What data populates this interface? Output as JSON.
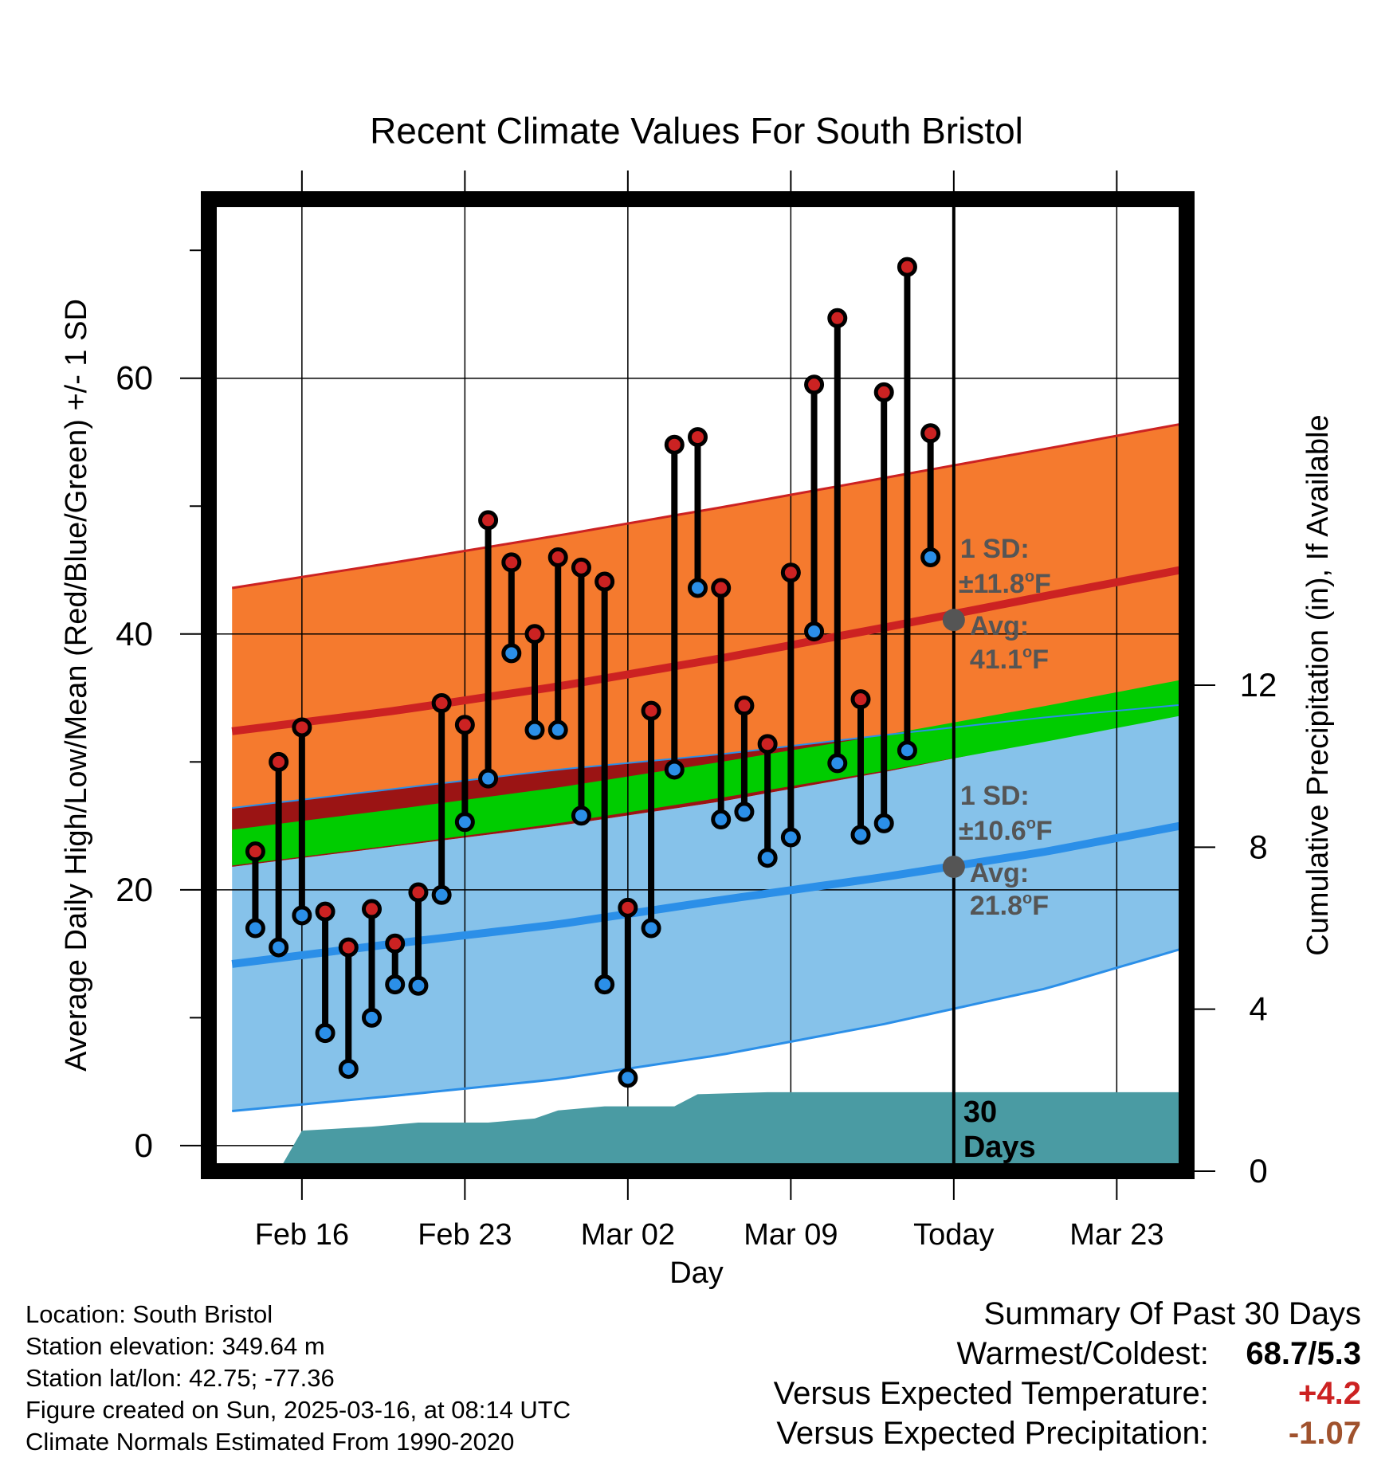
{
  "chart_data": {
    "type": "line",
    "title": "Recent Climate Values For South Bristol",
    "xlabel": "Day",
    "ylabel": "Average Daily High/Low/Mean (Red/Blue/Green) +/- 1 SD",
    "y2label": "Cumulative Precipitation (in), If Available",
    "xlim": [
      "2025-02-12",
      "2025-03-26"
    ],
    "ylim": [
      -2,
      74
    ],
    "y2lim": [
      0,
      24
    ],
    "x_ticks": [
      {
        "date": "2025-02-16",
        "label": "Feb 16"
      },
      {
        "date": "2025-02-23",
        "label": "Feb 23"
      },
      {
        "date": "2025-03-02",
        "label": "Mar 02"
      },
      {
        "date": "2025-03-09",
        "label": "Mar 09"
      },
      {
        "date": "2025-03-16",
        "label": "Today"
      },
      {
        "date": "2025-03-23",
        "label": "Mar 23"
      }
    ],
    "y_ticks": [
      0,
      20,
      40,
      60
    ],
    "y2_ticks": [
      0,
      4,
      8,
      12
    ],
    "grid": true,
    "today": "2025-03-16",
    "daily_obs": [
      {
        "date": "2025-02-14",
        "high": 23.0,
        "low": 17.0
      },
      {
        "date": "2025-02-15",
        "high": 30.0,
        "low": 15.5
      },
      {
        "date": "2025-02-16",
        "high": 32.7,
        "low": 18.0
      },
      {
        "date": "2025-02-17",
        "high": 18.3,
        "low": 8.8
      },
      {
        "date": "2025-02-18",
        "high": 15.5,
        "low": 6.0
      },
      {
        "date": "2025-02-19",
        "high": 18.5,
        "low": 10.0
      },
      {
        "date": "2025-02-20",
        "high": 15.8,
        "low": 12.6
      },
      {
        "date": "2025-02-21",
        "high": 19.8,
        "low": 12.5
      },
      {
        "date": "2025-02-22",
        "high": 34.6,
        "low": 19.6
      },
      {
        "date": "2025-02-23",
        "high": 32.9,
        "low": 25.3
      },
      {
        "date": "2025-02-24",
        "high": 48.9,
        "low": 28.7
      },
      {
        "date": "2025-02-25",
        "high": 45.6,
        "low": 38.5
      },
      {
        "date": "2025-02-26",
        "high": 40.0,
        "low": 32.5
      },
      {
        "date": "2025-02-27",
        "high": 46.0,
        "low": 32.5
      },
      {
        "date": "2025-02-28",
        "high": 45.2,
        "low": 25.8
      },
      {
        "date": "2025-03-01",
        "high": 44.1,
        "low": 12.6
      },
      {
        "date": "2025-03-02",
        "high": 18.6,
        "low": 5.3
      },
      {
        "date": "2025-03-03",
        "high": 34.0,
        "low": 17.0
      },
      {
        "date": "2025-03-04",
        "high": 54.8,
        "low": 29.4
      },
      {
        "date": "2025-03-05",
        "high": 55.4,
        "low": 43.6
      },
      {
        "date": "2025-03-06",
        "high": 43.6,
        "low": 25.5
      },
      {
        "date": "2025-03-07",
        "high": 34.4,
        "low": 26.1
      },
      {
        "date": "2025-03-08",
        "high": 31.4,
        "low": 22.5
      },
      {
        "date": "2025-03-09",
        "high": 44.8,
        "low": 24.1
      },
      {
        "date": "2025-03-10",
        "high": 59.5,
        "low": 40.2
      },
      {
        "date": "2025-03-11",
        "high": 64.7,
        "low": 29.9
      },
      {
        "date": "2025-03-12",
        "high": 34.9,
        "low": 24.3
      },
      {
        "date": "2025-03-13",
        "high": 58.9,
        "low": 25.2
      },
      {
        "date": "2025-03-14",
        "high": 68.7,
        "low": 30.9
      },
      {
        "date": "2025-03-15",
        "high": 55.7,
        "low": 46.0
      }
    ],
    "normals": {
      "dates": [
        "2025-02-13",
        "2025-02-20",
        "2025-02-27",
        "2025-03-06",
        "2025-03-13",
        "2025-03-20",
        "2025-03-26"
      ],
      "high_avg": [
        32.4,
        34.0,
        35.9,
        38.1,
        40.5,
        43.0,
        45.1
      ],
      "high_sd_upper": [
        43.6,
        45.6,
        47.7,
        49.9,
        52.2,
        54.5,
        56.5
      ],
      "low_avg": [
        14.2,
        15.8,
        17.3,
        19.2,
        21.0,
        23.0,
        25.1
      ],
      "low_sd_upper": [
        21.8,
        23.4,
        25.0,
        26.9,
        29.2,
        31.7,
        34.2
      ],
      "low_sd_lower": [
        2.7,
        3.9,
        5.2,
        7.1,
        9.5,
        12.3,
        15.5
      ],
      "mean_avg": [
        23.3,
        24.9,
        26.6,
        28.6,
        30.7,
        33.0,
        35.1
      ],
      "high_sd_lower_mean_band": [
        26.4,
        27.9,
        29.4,
        30.6,
        32.1,
        33.5,
        34.5
      ]
    },
    "precip_cumulative": [
      {
        "date": "2025-02-14",
        "value": 0.0
      },
      {
        "date": "2025-02-15",
        "value": 0.0
      },
      {
        "date": "2025-02-16",
        "value": 1.0
      },
      {
        "date": "2025-02-19",
        "value": 1.1
      },
      {
        "date": "2025-02-21",
        "value": 1.2
      },
      {
        "date": "2025-02-24",
        "value": 1.2
      },
      {
        "date": "2025-02-26",
        "value": 1.3
      },
      {
        "date": "2025-02-27",
        "value": 1.5
      },
      {
        "date": "2025-03-01",
        "value": 1.6
      },
      {
        "date": "2025-03-04",
        "value": 1.6
      },
      {
        "date": "2025-03-05",
        "value": 1.9
      },
      {
        "date": "2025-03-08",
        "value": 1.95
      },
      {
        "date": "2025-03-26",
        "value": 1.95
      }
    ],
    "annotations": {
      "high_sd_label": "1 SD:",
      "high_sd_value": "±11.8",
      "high_avg_label": "Avg:",
      "high_avg_value": "41.1",
      "low_sd_label": "1 SD:",
      "low_sd_value": "±10.6",
      "low_avg_label": "Avg:",
      "low_avg_value": "21.8",
      "degree_unit": "o",
      "temp_unit": "F",
      "days_line1": "30",
      "days_line2": "Days"
    },
    "colors": {
      "high": "#cc2222",
      "low": "#2b8fe8",
      "mean": "#00cc00",
      "high_band": "#f57a2e",
      "low_band": "#86c2ea",
      "overlap_band": "#9b1414",
      "precip": "#4a9ba3",
      "annotation": "#555555"
    }
  },
  "footer": {
    "location": "Location: South Bristol",
    "elevation": "Station elevation: 349.64 m",
    "latlon": "Station lat/lon: 42.75; -77.36",
    "created": "Figure created on Sun, 2025-03-16, at 08:14 UTC",
    "normals": "Climate Normals Estimated From 1990-2020"
  },
  "summary": {
    "title": "Summary Of Past 30 Days",
    "warmest_coldest_label": "Warmest/Coldest:",
    "warmest_coldest_value": "68.7/5.3",
    "temp_label": "Versus Expected Temperature:",
    "temp_value": "+4.2",
    "temp_color": "#cc2222",
    "precip_label": "Versus Expected Precipitation:",
    "precip_value": "-1.07",
    "precip_color": "#a0522d"
  }
}
